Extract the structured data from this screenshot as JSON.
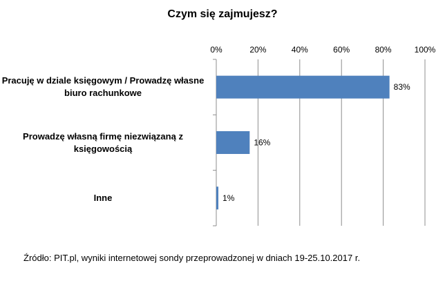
{
  "chart_data": {
    "type": "bar",
    "orientation": "horizontal",
    "title": "Czym się zajmujesz?",
    "categories": [
      "Pracuję w dziale księgowym / Prowadzę własne biuro rachunkowe",
      "Prowadzę własną firmę niezwiązaną z księgowością",
      "Inne"
    ],
    "category_lines": [
      [
        "Pracuję w dziale księgowym / Prowadzę własne",
        "biuro rachunkowe"
      ],
      [
        "Prowadzę własną firmę niezwiązaną z",
        "księgowością"
      ],
      [
        "Inne"
      ]
    ],
    "values": [
      83,
      16,
      1
    ],
    "data_labels": [
      "83%",
      "16%",
      "1%"
    ],
    "xlim": [
      0,
      100
    ],
    "x_ticks": [
      "0%",
      "20%",
      "40%",
      "60%",
      "80%",
      "100%"
    ],
    "x_axis_position": "top",
    "grid": true,
    "bar_color": "#4F81BD"
  },
  "source_note": "Źródło: PIT.pl, wyniki internetowej sondy przeprowadzonej w dniach 19-25.10.2017  r."
}
